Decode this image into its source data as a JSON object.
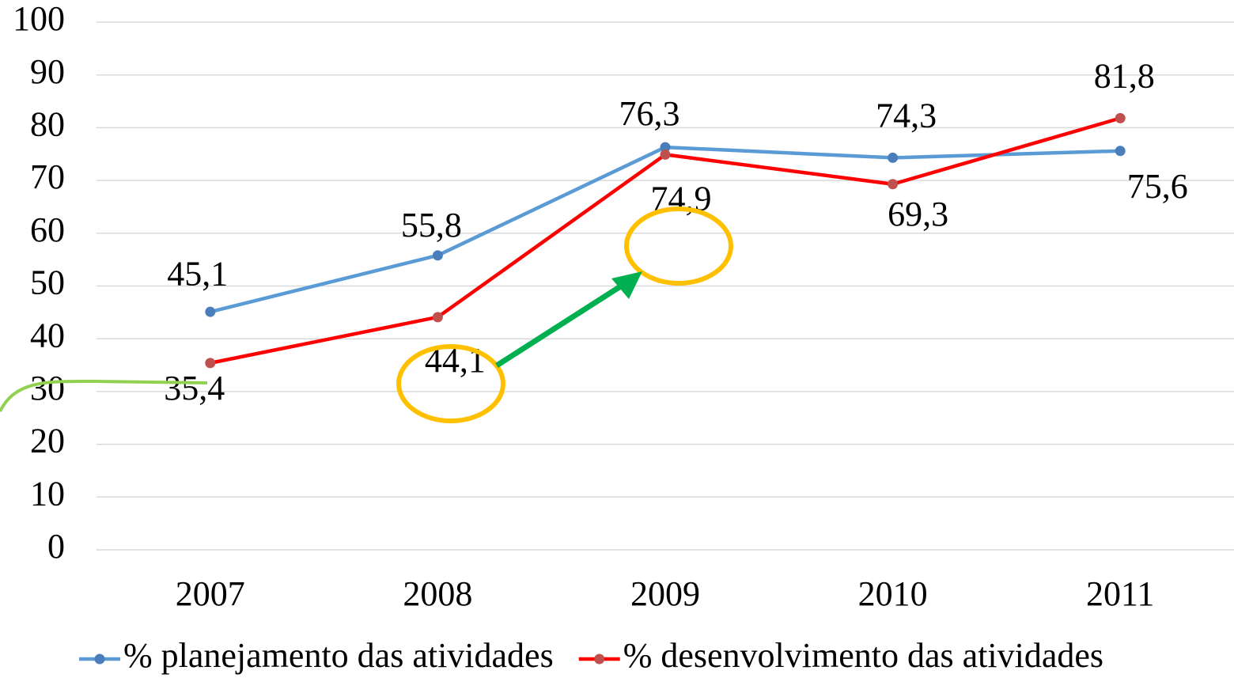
{
  "chart_data": {
    "type": "line",
    "categories": [
      "2007",
      "2008",
      "2009",
      "2010",
      "2011"
    ],
    "series": [
      {
        "name": "% planejamento das atividades",
        "color": "#5b9bd5",
        "marker_color": "#4a7ebb",
        "values": [
          45.1,
          55.8,
          76.3,
          74.3,
          75.6
        ],
        "value_labels": [
          "45,1",
          "55,8",
          "76,3",
          "74,3",
          "75,6"
        ]
      },
      {
        "name": "% desenvolvimento das atividades",
        "color": "#ff0000",
        "marker_color": "#c0504d",
        "values": [
          35.4,
          44.1,
          74.9,
          69.3,
          81.8
        ],
        "value_labels": [
          "35,4",
          "44,1",
          "74,9",
          "69,3",
          "81,8"
        ]
      }
    ],
    "ylim": [
      0,
      100
    ],
    "yticks": [
      0,
      10,
      20,
      30,
      40,
      50,
      60,
      70,
      80,
      90,
      100
    ],
    "grid": true,
    "legend": "bottom"
  }
}
